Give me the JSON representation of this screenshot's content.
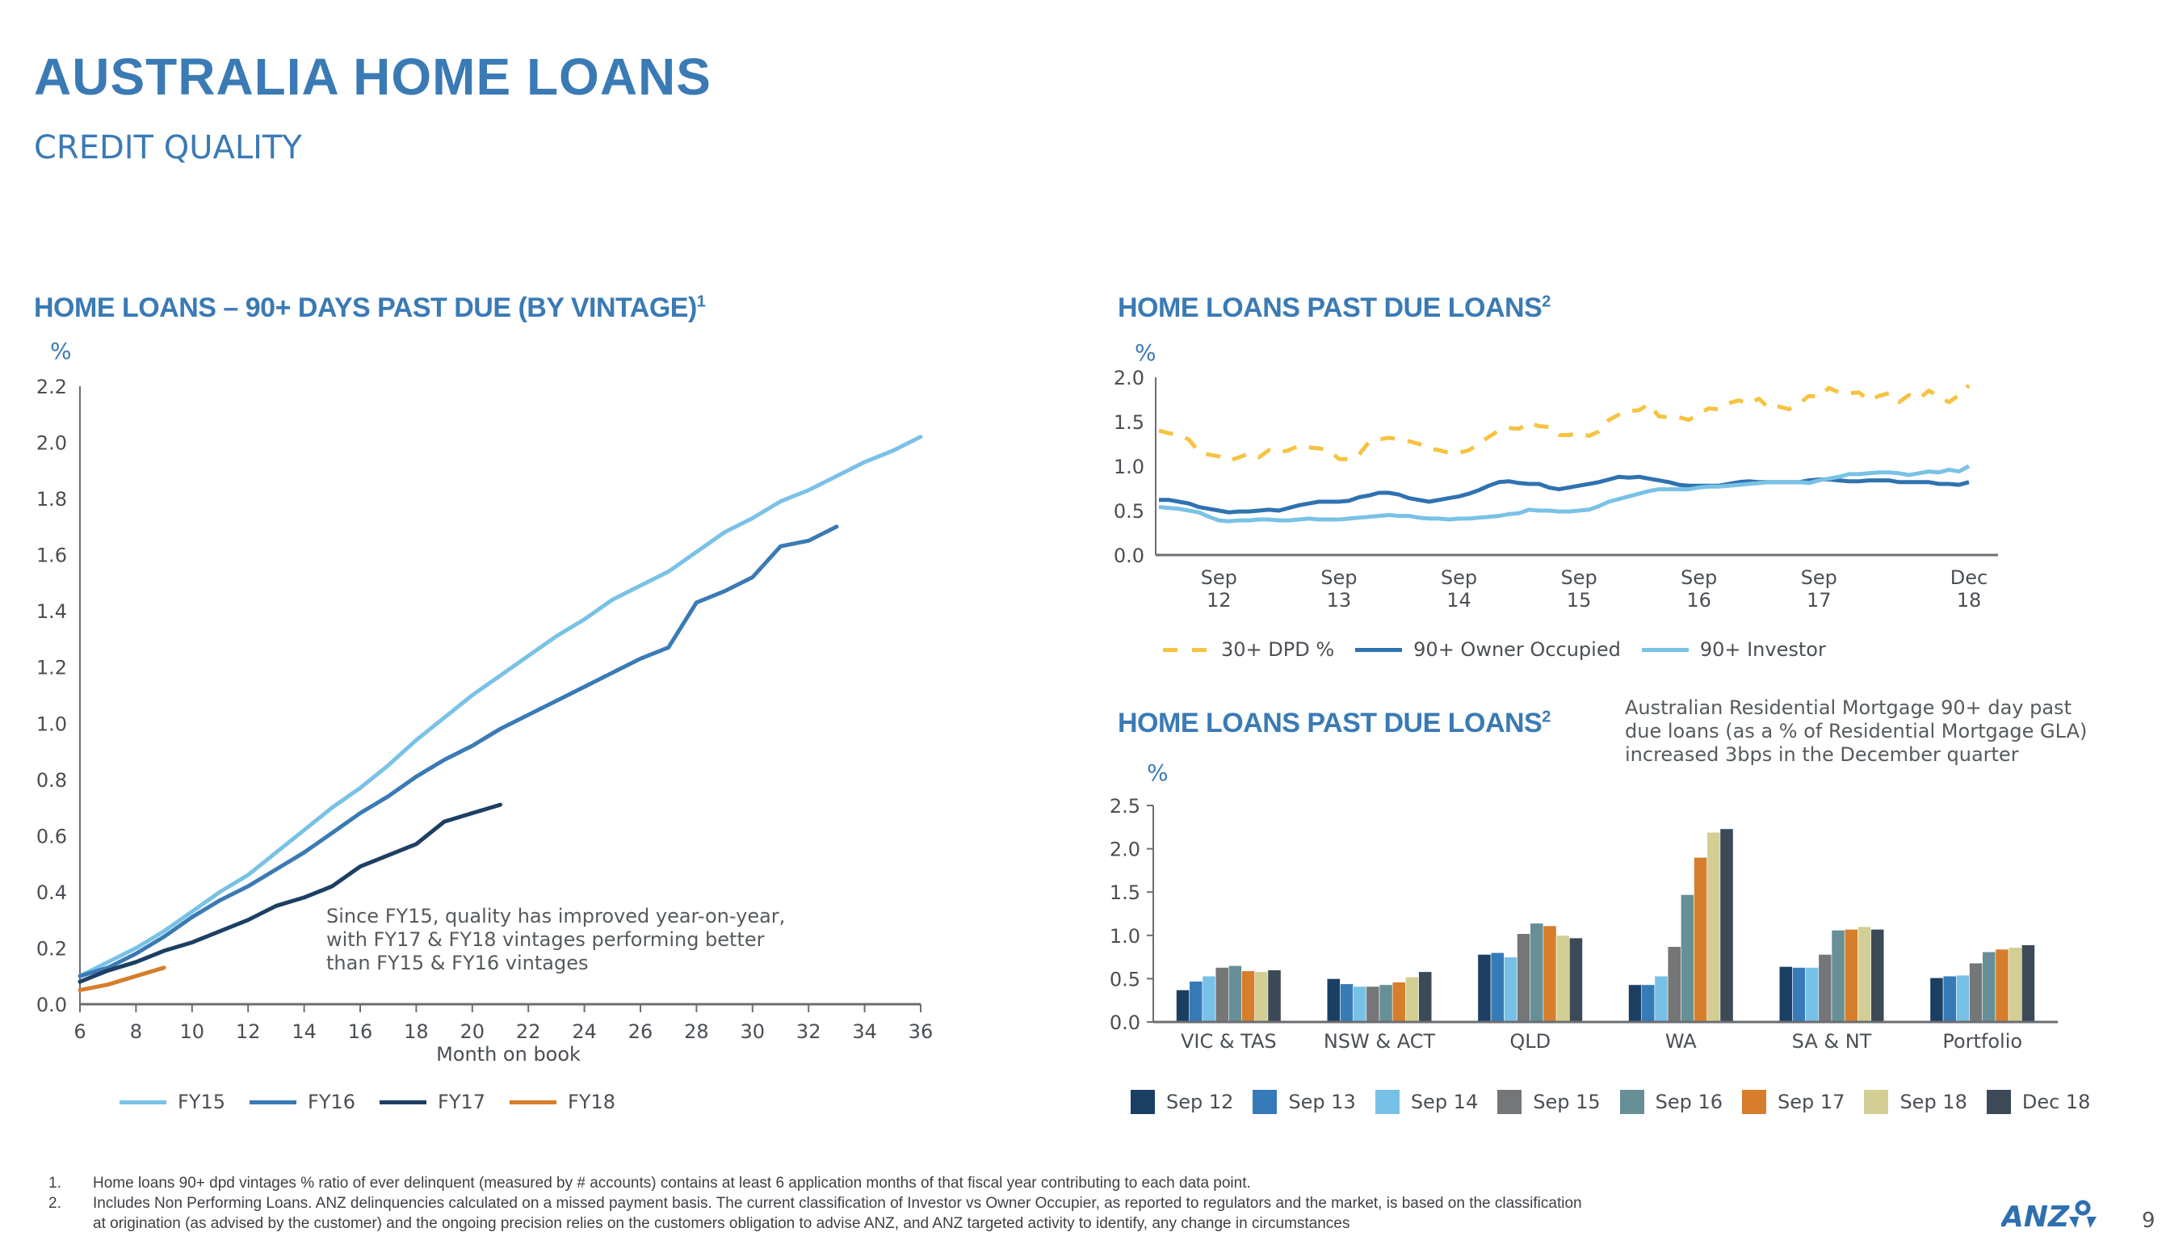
{
  "header": {
    "title": "AUSTRALIA HOME LOANS",
    "subtitle": "CREDIT QUALITY"
  },
  "colors": {
    "brand": "#3a7ab5",
    "fy15": "#79c2e6",
    "fy16": "#3a7ab5",
    "fy17": "#1c3f63",
    "fy18": "#d67e2c",
    "dpd30": "#f6c342",
    "owner": "#2f72b0",
    "investor": "#79c2e6"
  },
  "left_panel": {
    "title": "HOME LOANS – 90+ DAYS PAST DUE  (BY VINTAGE)",
    "title_sup": "1",
    "unit": "%",
    "annotation": [
      "Since FY15, quality has improved year-on-year,",
      "with FY17 & FY18 vintages performing better",
      "than FY15 & FY16 vintages"
    ]
  },
  "top_right_panel": {
    "title": "HOME LOANS PAST DUE LOANS",
    "title_sup": "2",
    "unit": "%"
  },
  "bottom_right_panel": {
    "title": "HOME LOANS PAST DUE LOANS",
    "title_sup": "2",
    "unit": "%",
    "note": [
      "Australian Residential Mortgage 90+ day past",
      "due loans (as a % of Residential Mortgage GLA)",
      "increased 3bps in the December quarter"
    ]
  },
  "chart_data": [
    {
      "type": "line",
      "title": "HOME LOANS – 90+ DAYS PAST DUE  (BY VINTAGE)",
      "xlabel": "Month on book",
      "ylabel": "%",
      "xlim": [
        6,
        36
      ],
      "ylim": [
        0,
        2.2
      ],
      "xticks": [
        "6",
        "8",
        "10",
        "12",
        "14",
        "16",
        "18",
        "20",
        "22",
        "24",
        "26",
        "28",
        "30",
        "32",
        "34",
        "36"
      ],
      "yticks": [
        "0.0",
        "0.2",
        "0.4",
        "0.6",
        "0.8",
        "1.0",
        "1.2",
        "1.4",
        "1.6",
        "1.8",
        "2.0",
        "2.2"
      ],
      "legend_position": "bottom",
      "series": [
        {
          "name": "FY15",
          "color": "#79c2e6",
          "x_start": 6,
          "values": [
            0.1,
            0.15,
            0.2,
            0.26,
            0.33,
            0.4,
            0.46,
            0.54,
            0.62,
            0.7,
            0.77,
            0.85,
            0.94,
            1.02,
            1.1,
            1.17,
            1.24,
            1.31,
            1.37,
            1.44,
            1.49,
            1.54,
            1.61,
            1.68,
            1.73,
            1.79,
            1.83,
            1.88,
            1.93,
            1.97,
            2.02
          ]
        },
        {
          "name": "FY16",
          "color": "#3a7ab5",
          "x_start": 6,
          "values": [
            0.1,
            0.13,
            0.18,
            0.24,
            0.31,
            0.37,
            0.42,
            0.48,
            0.54,
            0.61,
            0.68,
            0.74,
            0.81,
            0.87,
            0.92,
            0.98,
            1.03,
            1.08,
            1.13,
            1.18,
            1.23,
            1.27,
            1.43,
            1.47,
            1.52,
            1.63,
            1.65,
            1.7
          ]
        },
        {
          "name": "FY17",
          "color": "#1c3f63",
          "x_start": 6,
          "values": [
            0.08,
            0.12,
            0.15,
            0.19,
            0.22,
            0.26,
            0.3,
            0.35,
            0.38,
            0.42,
            0.49,
            0.53,
            0.57,
            0.65,
            0.68,
            0.71
          ]
        },
        {
          "name": "FY18",
          "color": "#d67e2c",
          "x_start": 6,
          "values": [
            0.05,
            0.07,
            0.1,
            0.13
          ]
        }
      ]
    },
    {
      "type": "line",
      "title": "HOME LOANS PAST DUE LOANS",
      "ylabel": "%",
      "ylim": [
        0,
        2.0
      ],
      "yticks": [
        "0.0",
        "0.5",
        "1.0",
        "1.5",
        "2.0"
      ],
      "x_start": "Mar 12",
      "x_end": "Dec 18",
      "x_frequency": "monthly",
      "xticks": [
        {
          "month_index": 6,
          "l1": "Sep",
          "l2": "12"
        },
        {
          "month_index": 18,
          "l1": "Sep",
          "l2": "13"
        },
        {
          "month_index": 30,
          "l1": "Sep",
          "l2": "14"
        },
        {
          "month_index": 42,
          "l1": "Sep",
          "l2": "15"
        },
        {
          "month_index": 54,
          "l1": "Sep",
          "l2": "16"
        },
        {
          "month_index": 66,
          "l1": "Sep",
          "l2": "17"
        },
        {
          "month_index": 81,
          "l1": "Dec",
          "l2": "18"
        }
      ],
      "legend_position": "bottom",
      "series": [
        {
          "name": "30+ DPD %",
          "color": "#f6c342",
          "dashed": true,
          "values": [
            1.4,
            1.37,
            1.35,
            1.3,
            1.16,
            1.13,
            1.11,
            1.06,
            1.1,
            1.14,
            1.1,
            1.18,
            1.15,
            1.18,
            1.23,
            1.21,
            1.2,
            1.18,
            1.08,
            1.08,
            1.13,
            1.27,
            1.3,
            1.32,
            1.3,
            1.28,
            1.25,
            1.2,
            1.18,
            1.15,
            1.15,
            1.18,
            1.25,
            1.33,
            1.4,
            1.43,
            1.42,
            1.49,
            1.45,
            1.44,
            1.35,
            1.35,
            1.37,
            1.34,
            1.39,
            1.52,
            1.58,
            1.62,
            1.63,
            1.7,
            1.56,
            1.55,
            1.55,
            1.52,
            1.59,
            1.65,
            1.64,
            1.71,
            1.74,
            1.7,
            1.76,
            1.65,
            1.67,
            1.64,
            1.7,
            1.79,
            1.78,
            1.88,
            1.83,
            1.82,
            1.83,
            1.74,
            1.79,
            1.82,
            1.72,
            1.8,
            1.76,
            1.85,
            1.78,
            1.72,
            1.8,
            1.91
          ]
        },
        {
          "name": "90+ Owner Occupied",
          "color": "#2f72b0",
          "dashed": false,
          "values": [
            0.62,
            0.62,
            0.6,
            0.58,
            0.54,
            0.52,
            0.5,
            0.48,
            0.49,
            0.49,
            0.5,
            0.51,
            0.5,
            0.53,
            0.56,
            0.58,
            0.6,
            0.6,
            0.6,
            0.61,
            0.65,
            0.67,
            0.7,
            0.7,
            0.68,
            0.64,
            0.62,
            0.6,
            0.62,
            0.64,
            0.66,
            0.69,
            0.73,
            0.78,
            0.82,
            0.83,
            0.81,
            0.8,
            0.8,
            0.76,
            0.74,
            0.76,
            0.78,
            0.8,
            0.82,
            0.85,
            0.88,
            0.87,
            0.88,
            0.86,
            0.84,
            0.82,
            0.79,
            0.78,
            0.78,
            0.78,
            0.78,
            0.8,
            0.82,
            0.83,
            0.82,
            0.82,
            0.82,
            0.82,
            0.82,
            0.84,
            0.85,
            0.85,
            0.84,
            0.83,
            0.83,
            0.84,
            0.84,
            0.84,
            0.82,
            0.82,
            0.82,
            0.82,
            0.8,
            0.8,
            0.79,
            0.82
          ]
        },
        {
          "name": "90+ Investor",
          "color": "#79c2e6",
          "dashed": false,
          "values": [
            0.54,
            0.53,
            0.52,
            0.5,
            0.48,
            0.43,
            0.39,
            0.38,
            0.39,
            0.39,
            0.4,
            0.4,
            0.39,
            0.39,
            0.4,
            0.41,
            0.4,
            0.4,
            0.4,
            0.41,
            0.42,
            0.43,
            0.44,
            0.45,
            0.44,
            0.44,
            0.42,
            0.41,
            0.41,
            0.4,
            0.41,
            0.41,
            0.42,
            0.43,
            0.44,
            0.46,
            0.47,
            0.51,
            0.5,
            0.5,
            0.49,
            0.49,
            0.5,
            0.51,
            0.55,
            0.6,
            0.63,
            0.66,
            0.69,
            0.72,
            0.74,
            0.74,
            0.74,
            0.74,
            0.76,
            0.77,
            0.77,
            0.78,
            0.79,
            0.8,
            0.81,
            0.82,
            0.82,
            0.82,
            0.82,
            0.81,
            0.84,
            0.86,
            0.88,
            0.91,
            0.91,
            0.92,
            0.93,
            0.93,
            0.92,
            0.9,
            0.92,
            0.94,
            0.93,
            0.96,
            0.94,
            1.0
          ]
        }
      ]
    },
    {
      "type": "bar",
      "title": "HOME LOANS PAST DUE LOANS",
      "ylabel": "%",
      "ylim": [
        0,
        2.5
      ],
      "yticks": [
        "0.0",
        "0.5",
        "1.0",
        "1.5",
        "2.0",
        "2.5"
      ],
      "categories": [
        "VIC & TAS",
        "NSW & ACT",
        "QLD",
        "WA",
        "SA & NT",
        "Portfolio"
      ],
      "legend_position": "bottom",
      "series": [
        {
          "name": "Sep 12",
          "color": "#1b3f63",
          "values": [
            0.37,
            0.5,
            0.78,
            0.43,
            0.64,
            0.51
          ]
        },
        {
          "name": "Sep 13",
          "color": "#367bb8",
          "values": [
            0.47,
            0.44,
            0.8,
            0.43,
            0.63,
            0.53
          ]
        },
        {
          "name": "Sep 14",
          "color": "#78c1e6",
          "values": [
            0.53,
            0.41,
            0.75,
            0.53,
            0.63,
            0.54
          ]
        },
        {
          "name": "Sep 15",
          "color": "#747678",
          "values": [
            0.63,
            0.41,
            1.02,
            0.87,
            0.78,
            0.68
          ]
        },
        {
          "name": "Sep 16",
          "color": "#668f96",
          "values": [
            0.65,
            0.43,
            1.14,
            1.47,
            1.06,
            0.81
          ]
        },
        {
          "name": "Sep 17",
          "color": "#d67e2c",
          "values": [
            0.59,
            0.46,
            1.11,
            1.9,
            1.07,
            0.84
          ]
        },
        {
          "name": "Sep 18",
          "color": "#d3ce94",
          "values": [
            0.58,
            0.52,
            1.0,
            2.19,
            1.1,
            0.86
          ]
        },
        {
          "name": "Dec 18",
          "color": "#3c4a57",
          "values": [
            0.6,
            0.58,
            0.97,
            2.23,
            1.07,
            0.89
          ]
        }
      ]
    }
  ],
  "footnotes": [
    {
      "num": "1.",
      "text": "Home loans 90+ dpd vintages % ratio of ever delinquent (measured by # accounts) contains at least 6 application months of that fiscal year contributing to each data point."
    },
    {
      "num": "2.",
      "text": "Includes Non Performing Loans. ANZ delinquencies calculated on a missed payment basis. The current classification of Investor vs Owner Occupier, as reported to regulators and the market, is based on the classification"
    },
    {
      "num": "",
      "text": "at origination (as advised by the customer) and the ongoing precision relies on the customers obligation to advise ANZ, and ANZ targeted activity to identify, any change in circumstances"
    }
  ],
  "logo": {
    "text": "ANZ"
  },
  "page_number": "9"
}
